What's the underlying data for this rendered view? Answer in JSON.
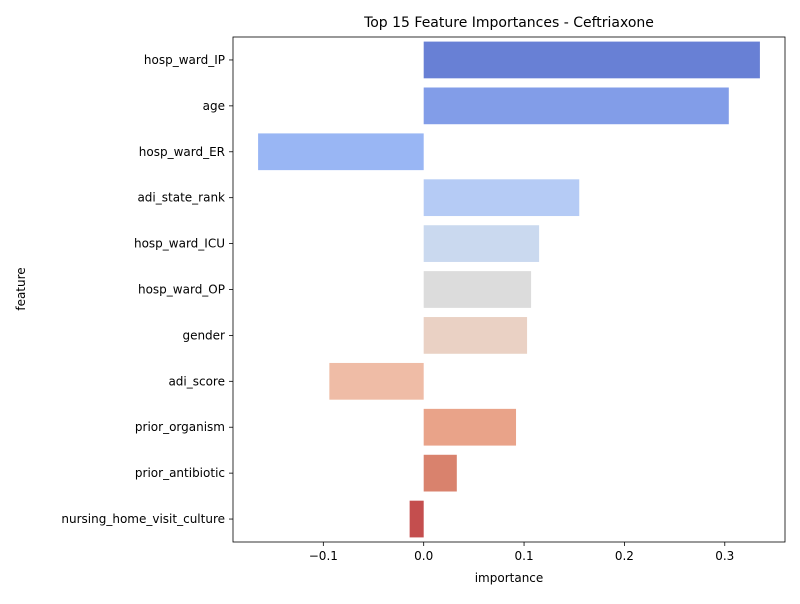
{
  "chart_data": {
    "type": "bar",
    "orientation": "horizontal",
    "title": "Top 15 Feature Importances - Ceftriaxone",
    "xlabel": "importance",
    "ylabel": "feature",
    "xlim": [
      -0.19,
      0.36
    ],
    "xticks": [
      -0.1,
      0.0,
      0.1,
      0.2,
      0.3
    ],
    "xtick_labels": [
      "−0.1",
      "0.0",
      "0.1",
      "0.2",
      "0.3"
    ],
    "grid": false,
    "legend": "none",
    "categories": [
      "hosp_ward_IP",
      "age",
      "hosp_ward_ER",
      "adi_state_rank",
      "hosp_ward_ICU",
      "hosp_ward_OP",
      "gender",
      "adi_score",
      "prior_organism",
      "prior_antibiotic",
      "nursing_home_visit_culture"
    ],
    "values": [
      0.335,
      0.304,
      -0.165,
      0.155,
      0.115,
      0.107,
      0.103,
      -0.094,
      0.092,
      0.033,
      -0.014
    ],
    "colors": [
      "#6880d5",
      "#829de8",
      "#99b6f4",
      "#b5cbf5",
      "#cad9ef",
      "#dcdcdc",
      "#ead1c4",
      "#efbca6",
      "#e9a389",
      "#d9826d",
      "#c44e4e"
    ]
  }
}
